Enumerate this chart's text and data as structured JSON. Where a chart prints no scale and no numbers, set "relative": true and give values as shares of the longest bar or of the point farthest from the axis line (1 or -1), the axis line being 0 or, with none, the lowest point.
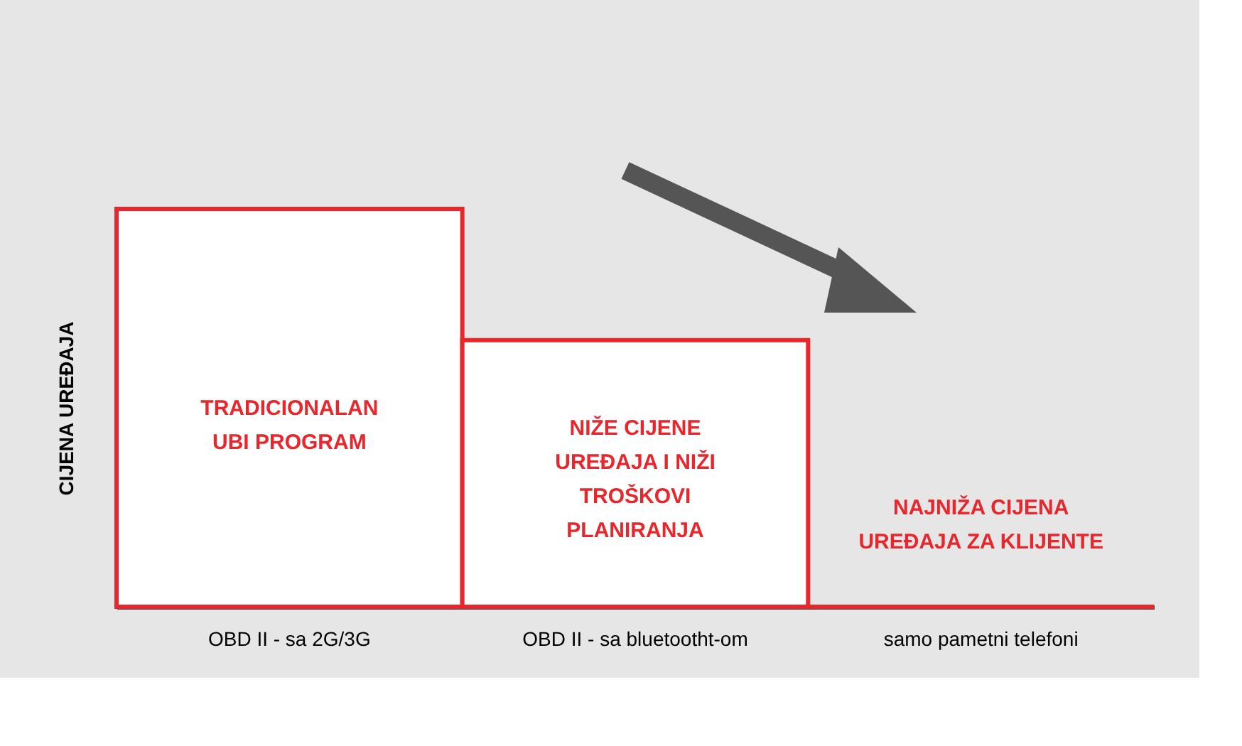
{
  "chart_data": {
    "type": "bar",
    "relative": true,
    "ylabel": "CIJENA UREĐAJA",
    "categories": [
      "OBD II - sa 2G/3G",
      "OBD II - sa bluetootht-om",
      "samo pametni telefoni"
    ],
    "values": [
      1,
      0.67,
      0
    ],
    "color": "#e8262b",
    "annotations": [
      "TRADICIONALAN\nUBI PROGRAM",
      "NIŽE CIJENE\nUREĐAJA I NIŽI\nTROŠKOVI\nPLANIRANJA",
      "NAJNIŽA CIJENA\nUREĐAJA ZA KLIJENTE"
    ],
    "grid": false
  }
}
